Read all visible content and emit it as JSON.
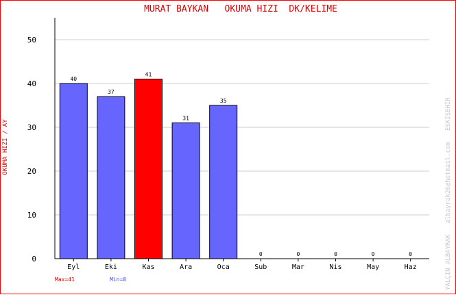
{
  "colors": {
    "border": "#ff0000",
    "title": "#e00000",
    "bar": "#6666ff",
    "bar_max": "#ff0000",
    "bar_stroke": "#000000",
    "grid": "#cccccc",
    "axis": "#000000",
    "watermark": "#c8c8c8",
    "min_label": "#4444ff"
  },
  "chart_data": {
    "type": "bar",
    "title": "MURAT BAYKAN   OKUMA HIZI  DK/KELIME",
    "ylabel": "OKUMA HIZI / AY",
    "xlabel": "",
    "categories": [
      "Eyl",
      "Eki",
      "Kas",
      "Ara",
      "Oca",
      "Sub",
      "Mar",
      "Nis",
      "May",
      "Haz"
    ],
    "values": [
      40,
      37,
      41,
      31,
      35,
      0,
      0,
      0,
      0,
      0
    ],
    "value_labels": [
      "40",
      "37",
      "41",
      "31",
      "35",
      "0",
      "0",
      "0",
      "0",
      "0"
    ],
    "highlight_index": 2,
    "ylim": [
      0,
      55
    ],
    "yticks": [
      0,
      10,
      20,
      30,
      40,
      50
    ],
    "grid": true,
    "max_label": "Max=41",
    "min_label": "Min=0",
    "watermark": "YALÇIN ALBAYRAK   albayrak26@hotmail.com   ESKİŞEHİR"
  }
}
